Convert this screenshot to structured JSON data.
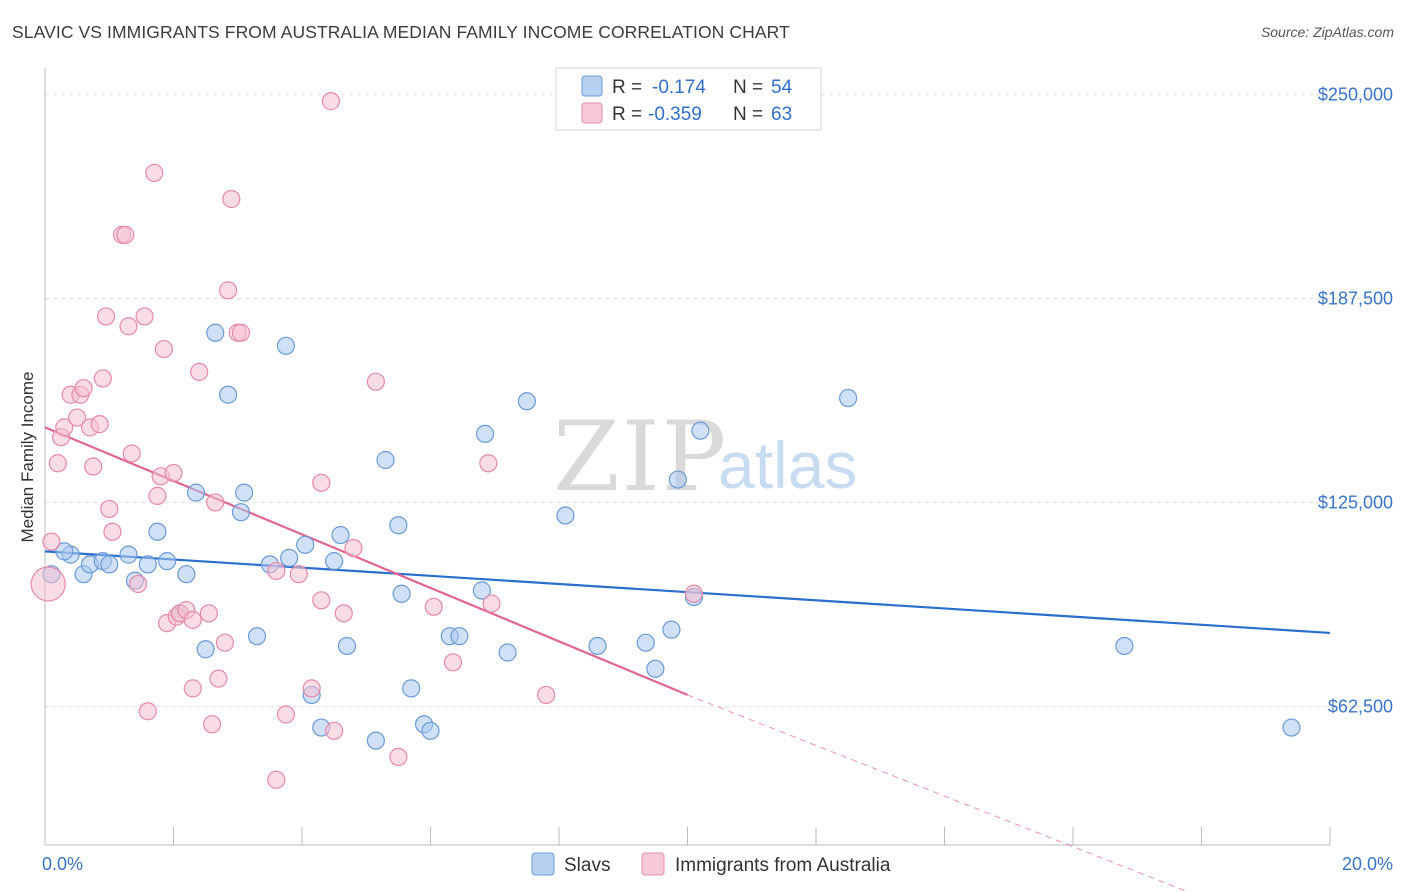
{
  "title": "SLAVIC VS IMMIGRANTS FROM AUSTRALIA MEDIAN FAMILY INCOME CORRELATION CHART",
  "source": "Source: ZipAtlas.com",
  "watermark": {
    "zip": "ZIP",
    "atlas": "atlas"
  },
  "colors": {
    "blue_fill": "#a9c8f0",
    "blue_stroke": "#6a9ad6",
    "blue_line": "#2a6fcc",
    "pink_fill": "#f6bfd0",
    "pink_stroke": "#e58aa8",
    "pink_line": "#e06590",
    "tick_label": "#3a74c6",
    "grid": "#dddddd"
  },
  "legend_top": {
    "rows": [
      {
        "series": "Slavs",
        "r_label": "R =",
        "r_value": "-0.174",
        "n_label": "N =",
        "n_value": "54"
      },
      {
        "series": "Immigrants from Australia",
        "r_label": "R =",
        "r_value": "-0.359",
        "n_label": "N =",
        "n_value": "63"
      }
    ]
  },
  "legend_bottom": {
    "items": [
      "Slavs",
      "Immigrants from Australia"
    ]
  },
  "chart_data": {
    "type": "scatter",
    "title": "SLAVIC VS IMMIGRANTS FROM AUSTRALIA MEDIAN FAMILY INCOME CORRELATION CHART",
    "xlabel": "",
    "ylabel": "Median Family Income",
    "xlim": [
      0,
      20
    ],
    "ylim": [
      20000,
      256000
    ],
    "x_tick_labels": [
      "0.0%",
      "20.0%"
    ],
    "y_ticks": [
      62500,
      125000,
      187500,
      250000
    ],
    "y_tick_labels": [
      "$62,500",
      "$125,000",
      "$187,500",
      "$250,000"
    ],
    "grid": true,
    "legend": "top-center",
    "series": [
      {
        "name": "Slavs",
        "points": [
          [
            0.1,
            103000
          ],
          [
            0.4,
            109000
          ],
          [
            0.6,
            103000
          ],
          [
            0.7,
            106000
          ],
          [
            0.9,
            107000
          ],
          [
            1.0,
            106000
          ],
          [
            1.3,
            109000
          ],
          [
            1.4,
            101000
          ],
          [
            1.6,
            106000
          ],
          [
            1.75,
            116000
          ],
          [
            1.9,
            107000
          ],
          [
            2.1,
            91000
          ],
          [
            2.2,
            103000
          ],
          [
            2.35,
            128000
          ],
          [
            2.5,
            80000
          ],
          [
            2.65,
            177000
          ],
          [
            2.85,
            158000
          ],
          [
            3.05,
            122000
          ],
          [
            3.1,
            128000
          ],
          [
            3.3,
            84000
          ],
          [
            3.5,
            106000
          ],
          [
            3.75,
            173000
          ],
          [
            3.8,
            108000
          ],
          [
            4.05,
            112000
          ],
          [
            4.15,
            66000
          ],
          [
            4.3,
            56000
          ],
          [
            4.5,
            107000
          ],
          [
            4.6,
            115000
          ],
          [
            4.7,
            81000
          ],
          [
            5.15,
            52000
          ],
          [
            5.3,
            138000
          ],
          [
            5.5,
            118000
          ],
          [
            5.55,
            97000
          ],
          [
            5.7,
            68000
          ],
          [
            5.9,
            57000
          ],
          [
            6.0,
            55000
          ],
          [
            6.3,
            84000
          ],
          [
            6.45,
            84000
          ],
          [
            6.8,
            98000
          ],
          [
            6.85,
            146000
          ],
          [
            7.2,
            79000
          ],
          [
            7.5,
            156000
          ],
          [
            8.1,
            121000
          ],
          [
            8.6,
            81000
          ],
          [
            9.35,
            82000
          ],
          [
            9.5,
            74000
          ],
          [
            9.75,
            86000
          ],
          [
            9.85,
            132000
          ],
          [
            10.1,
            96000
          ],
          [
            10.2,
            147000
          ],
          [
            12.5,
            157000
          ],
          [
            16.8,
            81000
          ],
          [
            19.4,
            56000
          ],
          [
            0.3,
            110000
          ]
        ],
        "trend": [
          [
            0,
            110000
          ],
          [
            20,
            85000
          ]
        ]
      },
      {
        "name": "Immigrants from Australia",
        "points": [
          [
            0.1,
            113000
          ],
          [
            0.2,
            137000
          ],
          [
            0.25,
            145000
          ],
          [
            0.3,
            148000
          ],
          [
            0.4,
            158000
          ],
          [
            0.5,
            151000
          ],
          [
            0.55,
            158000
          ],
          [
            0.6,
            160000
          ],
          [
            0.7,
            148000
          ],
          [
            0.75,
            136000
          ],
          [
            0.85,
            149000
          ],
          [
            0.9,
            163000
          ],
          [
            0.95,
            182000
          ],
          [
            1.0,
            123000
          ],
          [
            1.05,
            116000
          ],
          [
            1.2,
            207000
          ],
          [
            1.25,
            207000
          ],
          [
            1.3,
            179000
          ],
          [
            1.35,
            140000
          ],
          [
            1.45,
            100000
          ],
          [
            1.55,
            182000
          ],
          [
            1.6,
            61000
          ],
          [
            1.7,
            226000
          ],
          [
            1.75,
            127000
          ],
          [
            1.8,
            133000
          ],
          [
            1.85,
            172000
          ],
          [
            1.9,
            88000
          ],
          [
            2.0,
            134000
          ],
          [
            2.05,
            90000
          ],
          [
            2.1,
            91000
          ],
          [
            2.2,
            92000
          ],
          [
            2.3,
            89000
          ],
          [
            2.3,
            68000
          ],
          [
            2.4,
            165000
          ],
          [
            2.55,
            91000
          ],
          [
            2.6,
            57000
          ],
          [
            2.65,
            125000
          ],
          [
            2.7,
            71000
          ],
          [
            2.8,
            82000
          ],
          [
            2.85,
            190000
          ],
          [
            2.9,
            218000
          ],
          [
            3.0,
            177000
          ],
          [
            3.05,
            177000
          ],
          [
            3.6,
            104000
          ],
          [
            3.6,
            40000
          ],
          [
            3.75,
            60000
          ],
          [
            3.95,
            103000
          ],
          [
            4.15,
            68000
          ],
          [
            4.3,
            131000
          ],
          [
            4.3,
            95000
          ],
          [
            4.5,
            55000
          ],
          [
            4.65,
            91000
          ],
          [
            4.8,
            111000
          ],
          [
            5.15,
            162000
          ],
          [
            5.5,
            47000
          ],
          [
            6.05,
            93000
          ],
          [
            6.35,
            76000
          ],
          [
            6.9,
            137000
          ],
          [
            6.95,
            94000
          ],
          [
            7.8,
            66000
          ],
          [
            10.1,
            97000
          ],
          [
            4.45,
            248000
          ],
          [
            0.05,
            100000
          ]
        ],
        "trend": [
          [
            0,
            148000
          ],
          [
            10,
            66000
          ]
        ],
        "trend_dashed": [
          [
            10,
            66000
          ],
          [
            18,
            4000
          ]
        ]
      }
    ]
  }
}
